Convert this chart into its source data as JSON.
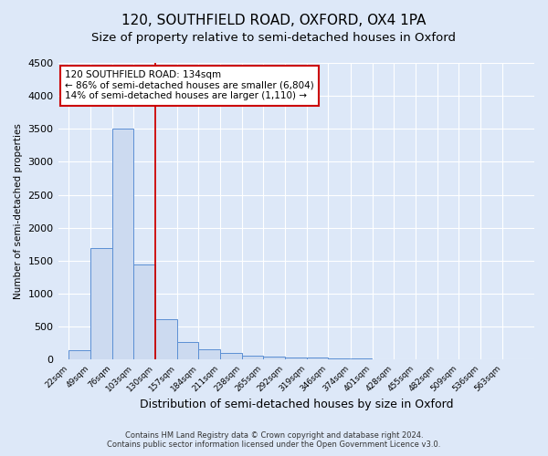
{
  "title": "120, SOUTHFIELD ROAD, OXFORD, OX4 1PA",
  "subtitle": "Size of property relative to semi-detached houses in Oxford",
  "xlabel": "Distribution of semi-detached houses by size in Oxford",
  "ylabel": "Number of semi-detached properties",
  "bar_values": [
    150,
    1700,
    3500,
    1450,
    620,
    270,
    160,
    100,
    60,
    50,
    40,
    30,
    20,
    15,
    5,
    5,
    3,
    2,
    1,
    1,
    0
  ],
  "bin_labels": [
    "22sqm",
    "49sqm",
    "76sqm",
    "103sqm",
    "130sqm",
    "157sqm",
    "184sqm",
    "211sqm",
    "238sqm",
    "265sqm",
    "292sqm",
    "319sqm",
    "346sqm",
    "374sqm",
    "401sqm",
    "428sqm",
    "455sqm",
    "482sqm",
    "509sqm",
    "536sqm",
    "563sqm"
  ],
  "bin_edges": [
    22,
    49,
    76,
    103,
    130,
    157,
    184,
    211,
    238,
    265,
    292,
    319,
    346,
    374,
    401,
    428,
    455,
    482,
    509,
    536,
    563
  ],
  "bar_color": "#ccdaf0",
  "bar_edge_color": "#5b8fd4",
  "vline_x": 130,
  "vline_color": "#cc0000",
  "annotation_title": "120 SOUTHFIELD ROAD: 134sqm",
  "annotation_line1": "← 86% of semi-detached houses are smaller (6,804)",
  "annotation_line2": "14% of semi-detached houses are larger (1,110) →",
  "annotation_box_color": "#ffffff",
  "annotation_box_edge": "#cc0000",
  "ylim": [
    0,
    4500
  ],
  "yticks": [
    0,
    500,
    1000,
    1500,
    2000,
    2500,
    3000,
    3500,
    4000,
    4500
  ],
  "footer1": "Contains HM Land Registry data © Crown copyright and database right 2024.",
  "footer2": "Contains public sector information licensed under the Open Government Licence v3.0.",
  "background_color": "#dde8f8",
  "plot_bg_color": "#dde8f8",
  "title_fontsize": 11,
  "subtitle_fontsize": 9.5
}
